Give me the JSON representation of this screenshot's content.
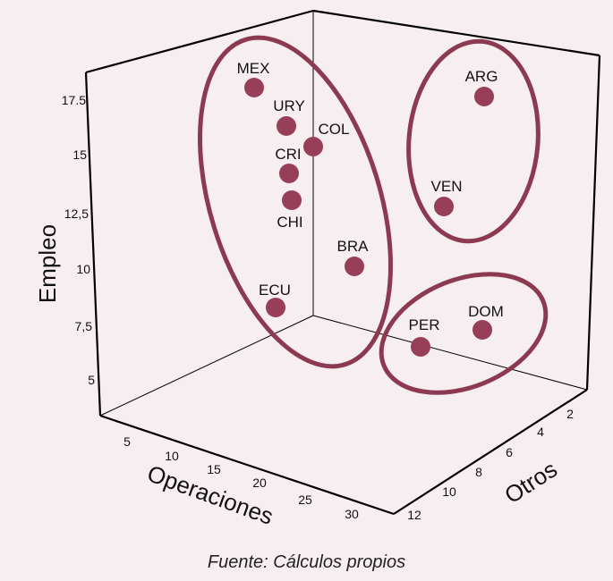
{
  "chart_data": {
    "type": "scatter",
    "projection": "3d",
    "axes": {
      "x": {
        "label": "Operaciones",
        "ticks": [
          "5",
          "10",
          "15",
          "20",
          "25",
          "30"
        ]
      },
      "y": {
        "label": "Empleo",
        "ticks": [
          "5",
          "7,5",
          "10",
          "12,5",
          "15",
          "17.5"
        ]
      },
      "z": {
        "label": "Otros",
        "ticks": [
          "2",
          "4",
          "6",
          "8",
          "10",
          "12"
        ]
      }
    },
    "points": [
      {
        "label": "MEX"
      },
      {
        "label": "URY"
      },
      {
        "label": "COL"
      },
      {
        "label": "CRI"
      },
      {
        "label": "CHI"
      },
      {
        "label": "BRA"
      },
      {
        "label": "ECU"
      },
      {
        "label": "ARG"
      },
      {
        "label": "VEN"
      },
      {
        "label": "PER"
      },
      {
        "label": "DOM"
      }
    ],
    "groups": [
      {
        "members": [
          "MEX",
          "URY",
          "COL",
          "CRI",
          "CHI",
          "BRA",
          "ECU"
        ]
      },
      {
        "members": [
          "ARG",
          "VEN"
        ]
      },
      {
        "members": [
          "PER",
          "DOM"
        ]
      }
    ],
    "colors": {
      "marker": "#973f58",
      "ellipse": "#8c3a52",
      "axes": "#000000",
      "background": "#f7eef1"
    },
    "grid": false,
    "legend": "none"
  },
  "source": "Fuente: Cálculos propios"
}
